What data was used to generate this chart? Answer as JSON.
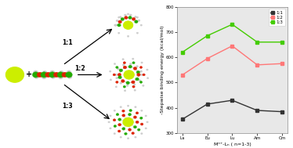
{
  "x_labels": [
    "La",
    "Eu",
    "Lu",
    "Am",
    "Cm"
  ],
  "series_11": [
    355,
    415,
    430,
    390,
    385
  ],
  "series_12": [
    530,
    595,
    645,
    570,
    575
  ],
  "series_13": [
    620,
    685,
    730,
    660,
    660
  ],
  "colors_11": "#333333",
  "colors_12": "#ff7777",
  "colors_13": "#44cc00",
  "ylabel": "-Stepwise binding energy (kcal/mol)",
  "xlabel": "Mⁿ⁺-Lₙ ( n=1-3)",
  "ylim_min": 300,
  "ylim_max": 800,
  "yticks": [
    300,
    400,
    500,
    600,
    700,
    800
  ],
  "legend_labels": [
    "1:1",
    "1:2",
    "1:3"
  ],
  "plot_bg": "#e8e8e8",
  "marker_size": 3.5,
  "linewidth": 1.0,
  "axis_fontsize": 4.5,
  "tick_fontsize": 4.0,
  "legend_fontsize": 4.0,
  "metal_color": "#ccee00",
  "metal_edge": "#999900",
  "red_atom": "#dd2200",
  "green_atom": "#22aa00",
  "gray_atom": "#cccccc",
  "bond_color": "#aaaaaa",
  "arrow_label_fontsize": 5.5
}
